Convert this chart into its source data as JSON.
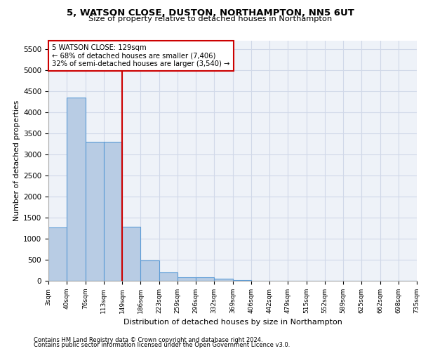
{
  "title1": "5, WATSON CLOSE, DUSTON, NORTHAMPTON, NN5 6UT",
  "title2": "Size of property relative to detached houses in Northampton",
  "xlabel": "Distribution of detached houses by size in Northampton",
  "ylabel": "Number of detached properties",
  "bar_values": [
    1260,
    4340,
    3300,
    3300,
    1280,
    480,
    205,
    80,
    80,
    55,
    15,
    0,
    0,
    0,
    0,
    0,
    0,
    0,
    0,
    0
  ],
  "bar_labels": [
    "3sqm",
    "40sqm",
    "76sqm",
    "113sqm",
    "149sqm",
    "186sqm",
    "223sqm",
    "259sqm",
    "296sqm",
    "332sqm",
    "369sqm",
    "406sqm",
    "442sqm",
    "479sqm",
    "515sqm",
    "552sqm",
    "589sqm",
    "625sqm",
    "662sqm",
    "698sqm",
    "735sqm"
  ],
  "bar_color": "#b8cce4",
  "bar_edge_color": "#5b9bd5",
  "vline_x": 3.5,
  "vline_color": "#cc0000",
  "ylim": [
    0,
    5700
  ],
  "yticks": [
    0,
    500,
    1000,
    1500,
    2000,
    2500,
    3000,
    3500,
    4000,
    4500,
    5000,
    5500
  ],
  "annotation_title": "5 WATSON CLOSE: 129sqm",
  "annotation_line1": "← 68% of detached houses are smaller (7,406)",
  "annotation_line2": "32% of semi-detached houses are larger (3,540) →",
  "annotation_box_color": "#cc0000",
  "grid_color": "#d0d8e8",
  "bg_color": "#eef2f8",
  "footer1": "Contains HM Land Registry data © Crown copyright and database right 2024.",
  "footer2": "Contains public sector information licensed under the Open Government Licence v3.0."
}
